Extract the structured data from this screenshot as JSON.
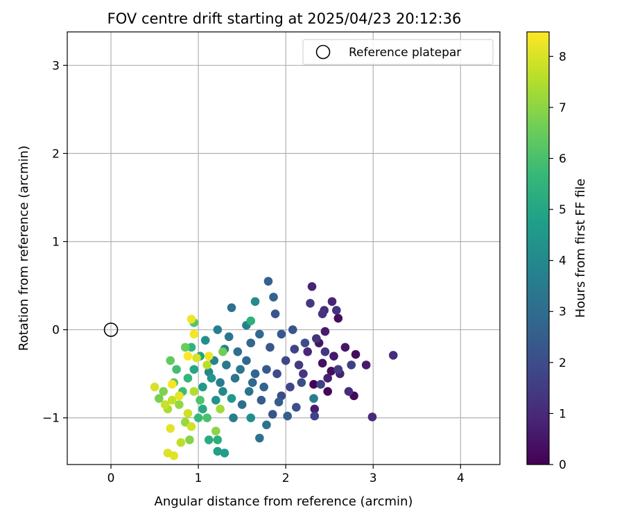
{
  "chart_data": {
    "type": "scatter",
    "title": "FOV centre drift starting at 2025/04/23 20:12:36",
    "xlabel": "Angular distance from reference (arcmin)",
    "ylabel": "Rotation from reference (arcmin)",
    "xlim": [
      -0.5,
      4.45
    ],
    "ylim": [
      -1.53,
      3.38
    ],
    "xticks": [
      0,
      1,
      2,
      3,
      4
    ],
    "yticks": [
      -1,
      0,
      1,
      2,
      3
    ],
    "grid": true,
    "legend": {
      "placement": "upper-right",
      "entries": [
        "Reference platepar"
      ]
    },
    "reference_point": {
      "label": "Reference platepar",
      "x": 0,
      "y": 0,
      "marker": "open-circle"
    },
    "colorbar": {
      "label": "Hours from first FF file",
      "range": [
        0,
        8.48
      ],
      "ticks": [
        0,
        1,
        2,
        3,
        4,
        5,
        6,
        7,
        8
      ],
      "colormap": "viridis",
      "stops": [
        "#440154",
        "#482878",
        "#3e4989",
        "#31688e",
        "#26828e",
        "#1f9e89",
        "#35b779",
        "#6ece58",
        "#b5de2b",
        "#fde725"
      ]
    },
    "series": [
      {
        "points": [
          [
            2.32,
            -0.62,
            0.05
          ],
          [
            2.48,
            -0.7,
            0.12
          ],
          [
            2.78,
            -0.75,
            0.2
          ],
          [
            2.8,
            -0.28,
            0.25
          ],
          [
            2.6,
            0.13,
            0.3
          ],
          [
            2.52,
            -0.47,
            0.35
          ],
          [
            2.42,
            -0.38,
            0.4
          ],
          [
            2.38,
            -0.15,
            0.45
          ],
          [
            2.68,
            -0.2,
            0.5
          ],
          [
            2.55,
            -0.3,
            0.55
          ],
          [
            2.92,
            -0.4,
            0.6
          ],
          [
            2.45,
            -0.02,
            0.65
          ],
          [
            2.33,
            -0.9,
            0.7
          ],
          [
            2.48,
            -0.55,
            0.75
          ],
          [
            2.62,
            -0.5,
            0.8
          ],
          [
            2.3,
            0.49,
            0.85
          ],
          [
            2.53,
            0.32,
            0.9
          ],
          [
            2.25,
            -0.25,
            0.95
          ],
          [
            2.99,
            -0.99,
            1.0
          ],
          [
            2.72,
            -0.7,
            1.05
          ],
          [
            3.23,
            -0.29,
            1.1
          ],
          [
            2.44,
            0.22,
            1.15
          ],
          [
            2.58,
            0.22,
            1.2
          ],
          [
            2.42,
            0.18,
            1.25
          ],
          [
            2.35,
            -0.1,
            1.3
          ],
          [
            2.2,
            -0.5,
            1.35
          ],
          [
            2.45,
            -0.25,
            1.4
          ],
          [
            2.28,
            0.3,
            1.45
          ],
          [
            2.15,
            -0.4,
            1.5
          ],
          [
            2.6,
            -0.45,
            1.55
          ],
          [
            2.75,
            -0.4,
            1.6
          ],
          [
            2.4,
            -0.62,
            1.65
          ],
          [
            2.33,
            -0.98,
            1.7
          ],
          [
            2.1,
            -0.22,
            1.75
          ],
          [
            2.05,
            -0.65,
            1.8
          ],
          [
            2.0,
            -0.35,
            1.85
          ],
          [
            1.9,
            -0.5,
            1.9
          ],
          [
            1.95,
            -0.75,
            1.95
          ],
          [
            2.18,
            -0.6,
            2.0
          ],
          [
            2.22,
            -0.15,
            2.05
          ],
          [
            2.12,
            -0.88,
            2.1
          ],
          [
            1.85,
            -0.96,
            2.15
          ],
          [
            1.88,
            0.18,
            2.2
          ],
          [
            2.08,
            0.0,
            2.25
          ],
          [
            1.95,
            -0.05,
            2.3
          ],
          [
            1.82,
            -0.2,
            2.35
          ],
          [
            1.78,
            -0.45,
            2.4
          ],
          [
            1.72,
            -0.8,
            2.45
          ],
          [
            1.92,
            -0.82,
            2.5
          ],
          [
            2.02,
            -0.98,
            2.55
          ],
          [
            1.8,
            0.55,
            2.6
          ],
          [
            1.86,
            0.37,
            2.65
          ],
          [
            1.75,
            -0.65,
            2.7
          ],
          [
            1.65,
            -0.5,
            2.75
          ],
          [
            1.6,
            -0.15,
            2.8
          ],
          [
            1.7,
            -0.05,
            2.85
          ],
          [
            1.55,
            -0.35,
            2.9
          ],
          [
            1.62,
            -0.6,
            2.95
          ],
          [
            1.5,
            -0.85,
            3.0
          ],
          [
            1.45,
            -0.25,
            3.05
          ],
          [
            1.38,
            0.25,
            3.1
          ],
          [
            1.7,
            -1.23,
            3.15
          ],
          [
            1.78,
            -1.08,
            3.2
          ],
          [
            1.58,
            -0.7,
            3.25
          ],
          [
            1.42,
            -0.55,
            3.3
          ],
          [
            1.35,
            -0.08,
            3.35
          ],
          [
            1.48,
            -0.45,
            3.4
          ],
          [
            1.32,
            -0.4,
            3.45
          ],
          [
            1.25,
            -0.6,
            3.5
          ],
          [
            1.4,
            -1.0,
            3.55
          ],
          [
            2.32,
            -0.78,
            3.6
          ],
          [
            1.3,
            -0.22,
            3.65
          ],
          [
            1.22,
            0.0,
            3.7
          ],
          [
            1.55,
            0.05,
            3.75
          ],
          [
            1.18,
            -0.35,
            3.8
          ],
          [
            1.12,
            -0.48,
            3.9
          ],
          [
            1.28,
            -0.7,
            4.0
          ],
          [
            1.65,
            0.32,
            4.05
          ],
          [
            1.6,
            -1.0,
            4.1
          ],
          [
            1.08,
            -0.12,
            4.2
          ],
          [
            1.2,
            -0.8,
            4.3
          ],
          [
            1.15,
            -0.55,
            4.4
          ],
          [
            1.38,
            -0.78,
            4.5
          ],
          [
            1.05,
            -0.65,
            4.6
          ],
          [
            1.3,
            -1.4,
            4.7
          ],
          [
            1.22,
            -1.38,
            4.8
          ],
          [
            1.02,
            -0.3,
            4.9
          ],
          [
            0.95,
            -0.45,
            5.0
          ],
          [
            1.05,
            -0.9,
            5.1
          ],
          [
            1.12,
            -1.25,
            5.2
          ],
          [
            1.22,
            -1.25,
            5.3
          ],
          [
            1.6,
            0.1,
            5.4
          ],
          [
            0.92,
            -0.2,
            5.5
          ],
          [
            0.88,
            -0.55,
            5.6
          ],
          [
            1.0,
            -1.0,
            5.7
          ],
          [
            0.82,
            -0.7,
            5.8
          ],
          [
            0.75,
            -0.45,
            5.9
          ],
          [
            1.1,
            -1.0,
            6.0
          ],
          [
            1.02,
            -0.8,
            6.1
          ],
          [
            0.95,
            0.08,
            6.2
          ],
          [
            0.72,
            -0.6,
            6.3
          ],
          [
            0.68,
            -0.35,
            6.4
          ],
          [
            0.85,
            -0.2,
            6.5
          ],
          [
            1.28,
            -0.25,
            6.6
          ],
          [
            0.55,
            -0.78,
            6.7
          ],
          [
            0.6,
            -0.7,
            6.8
          ],
          [
            0.9,
            -1.25,
            6.9
          ],
          [
            1.2,
            -1.15,
            7.0
          ],
          [
            0.78,
            -0.85,
            7.1
          ],
          [
            0.85,
            -1.05,
            7.2
          ],
          [
            1.25,
            -0.9,
            7.3
          ],
          [
            0.65,
            -0.9,
            7.4
          ],
          [
            0.95,
            -0.7,
            7.5
          ],
          [
            1.1,
            -0.4,
            7.6
          ],
          [
            0.8,
            -1.28,
            7.65
          ],
          [
            0.7,
            -0.8,
            7.7
          ],
          [
            0.62,
            -0.85,
            7.8
          ],
          [
            0.88,
            -0.95,
            7.85
          ],
          [
            0.92,
            -1.1,
            7.9
          ],
          [
            0.5,
            -0.65,
            7.95
          ],
          [
            0.98,
            -0.32,
            8.0
          ],
          [
            0.65,
            -1.4,
            8.05
          ],
          [
            0.72,
            -1.43,
            8.1
          ],
          [
            0.68,
            -1.12,
            8.15
          ],
          [
            0.78,
            -0.75,
            8.2
          ],
          [
            1.12,
            -0.3,
            8.25
          ],
          [
            0.92,
            0.12,
            8.3
          ],
          [
            0.95,
            -0.05,
            8.35
          ],
          [
            0.7,
            -0.62,
            8.4
          ],
          [
            0.88,
            -0.3,
            8.45
          ]
        ]
      }
    ]
  }
}
